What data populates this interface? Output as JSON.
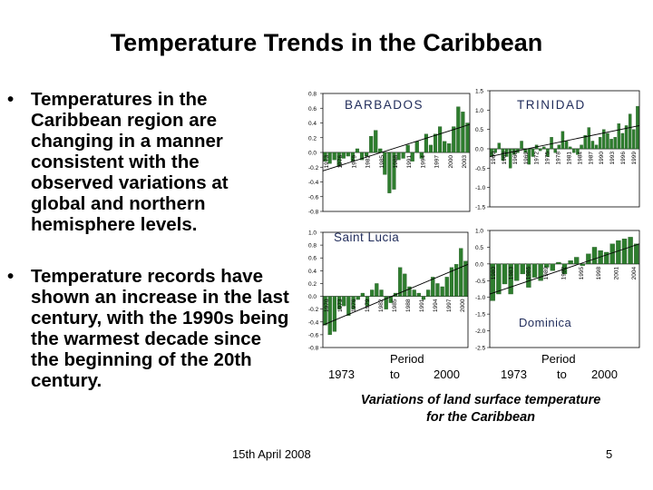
{
  "slide": {
    "title": "Temperature Trends in the Caribbean",
    "bullets": [
      "Temperatures in the Caribbean region are changing in a manner consistent with the observed variations at global and northern hemisphere levels.",
      "Temperature records have shown an increase in the last century, with the 1990s being the warmest decade since the beginning of the 20th century."
    ],
    "bullet_symbol": "•",
    "caption": "Variations of land surface temperature for the Caribbean",
    "left_period": {
      "start": "1973",
      "label": "Period",
      "to": "to",
      "end": "2000"
    },
    "right_period": {
      "label": "Period",
      "start": "1973",
      "to": "to",
      "end": "2000"
    },
    "footer_date": "15th April 2008",
    "page_number": "5"
  },
  "colors": {
    "bar_fill": "#2e7d2e",
    "bar_stroke": "#1a4d1a",
    "trend": "#000000",
    "title_text": "#1f2b5a"
  },
  "chart_data": [
    {
      "type": "bar",
      "title": "BARBADOS",
      "ylim": [
        -0.8,
        0.8
      ],
      "yticks": [
        0.8,
        0.6,
        0.4,
        0.2,
        0.0,
        -0.2,
        -0.4,
        -0.6,
        -0.8
      ],
      "ytick_labels": [
        "0.8",
        "0.6",
        "0.4",
        "0.2",
        "0.0",
        "-0.2",
        "-0.4",
        "-0.6",
        "-0.8"
      ],
      "xlabels": [
        "1973",
        "1976",
        "1979",
        "1982",
        "1985",
        "1988",
        "1991",
        "1994",
        "1997",
        "2000",
        "2003"
      ],
      "values": [
        -0.12,
        -0.15,
        -0.1,
        -0.18,
        -0.08,
        -0.05,
        -0.12,
        0.05,
        -0.1,
        -0.05,
        0.22,
        0.3,
        0.05,
        -0.3,
        -0.55,
        -0.5,
        -0.1,
        -0.08,
        0.1,
        -0.12,
        0.15,
        -0.08,
        0.25,
        0.1,
        0.25,
        0.35,
        0.15,
        0.12,
        0.35,
        0.62,
        0.55,
        0.4
      ],
      "trend": [
        -0.25,
        0.38
      ]
    },
    {
      "type": "bar",
      "title": "TRINIDAD",
      "ylim": [
        -1.5,
        1.5
      ],
      "yticks": [
        1.5,
        1.0,
        0.5,
        0.0,
        -0.5,
        -1.0,
        -1.5
      ],
      "ytick_labels": [
        "1.5",
        "1.0",
        "0.5",
        "0.0",
        "-0.5",
        "-1.0",
        "-1.5"
      ],
      "xlabels": [
        "1960",
        "1963",
        "1966",
        "1969",
        "1972",
        "1975",
        "1978",
        "1981",
        "1984",
        "1987",
        "1990",
        "1993",
        "1996",
        "1999"
      ],
      "values": [
        -0.2,
        -0.1,
        0.15,
        -0.3,
        -0.2,
        -0.5,
        -0.15,
        -0.1,
        0.2,
        -0.1,
        -0.4,
        -0.2,
        0.1,
        -0.05,
        0.05,
        -0.2,
        0.3,
        -0.1,
        0.1,
        0.45,
        0.2,
        0.05,
        -0.1,
        -0.15,
        0.1,
        0.35,
        0.55,
        0.2,
        0.1,
        0.3,
        0.5,
        0.4,
        0.25,
        0.3,
        0.65,
        0.4,
        0.6,
        0.9,
        0.5,
        1.1
      ],
      "trend": [
        -0.2,
        0.6
      ]
    },
    {
      "type": "bar",
      "title": "Saint Lucia",
      "ylim": [
        -0.8,
        1.0
      ],
      "yticks": [
        1.0,
        0.8,
        0.6,
        0.4,
        0.2,
        0.0,
        -0.2,
        -0.4,
        -0.6,
        -0.8
      ],
      "ytick_labels": [
        "1.0",
        "0.8",
        "0.6",
        "0.4",
        "0.2",
        "0.0",
        "-0.2",
        "-0.4",
        "-0.6",
        "-0.8"
      ],
      "xlabels": [
        "1970",
        "1973",
        "1976",
        "1979",
        "1982",
        "1985",
        "1988",
        "1991",
        "1994",
        "1997",
        "2000"
      ],
      "values": [
        -0.45,
        -0.6,
        -0.55,
        -0.2,
        -0.15,
        -0.3,
        -0.2,
        -0.05,
        0.05,
        -0.15,
        0.1,
        0.2,
        0.1,
        -0.2,
        -0.1,
        0.05,
        0.45,
        0.35,
        0.15,
        0.1,
        0.05,
        -0.05,
        0.1,
        0.3,
        0.2,
        0.15,
        0.3,
        0.45,
        0.5,
        0.75,
        0.55
      ],
      "trend": [
        -0.45,
        0.5
      ]
    },
    {
      "type": "bar",
      "title": "Dominica",
      "ylim": [
        -2.5,
        1.0
      ],
      "yticks": [
        1.0,
        0.5,
        0.0,
        -0.5,
        -1.0,
        -1.5,
        -2.0,
        -2.5
      ],
      "ytick_labels": [
        "1.0",
        "0.5",
        "0.0",
        "-0.5",
        "-1.0",
        "-1.5",
        "-2.0",
        "-2.5"
      ],
      "xlabels": [
        "1980",
        "1983",
        "1986",
        "1989",
        "1992",
        "1995",
        "1998",
        "2001",
        "2004"
      ],
      "values": [
        -1.1,
        -0.9,
        -0.6,
        -0.9,
        -0.5,
        -0.3,
        -0.7,
        -0.4,
        -0.5,
        -0.1,
        -0.2,
        0.05,
        -0.3,
        0.1,
        0.2,
        -0.05,
        0.3,
        0.5,
        0.4,
        0.35,
        0.6,
        0.7,
        0.75,
        0.8,
        0.6
      ],
      "trend": [
        -0.9,
        0.6
      ]
    }
  ]
}
